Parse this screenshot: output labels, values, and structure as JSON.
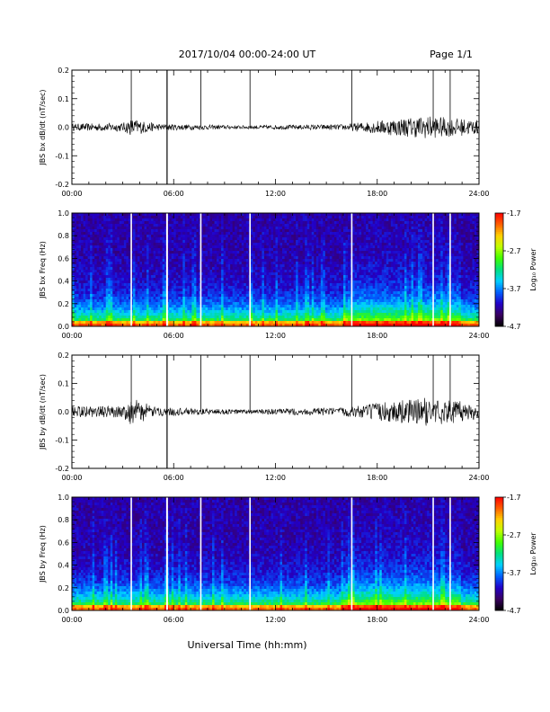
{
  "header": {
    "title": "2017/10/04  00:00-24:00 UT",
    "page": "Page 1/1"
  },
  "footer": {
    "xlabel": "Universal Time (hh:mm)"
  },
  "time_ticks": [
    "00:00",
    "06:00",
    "12:00",
    "18:00",
    "24:00"
  ],
  "spike_times_hours": [
    3.5,
    5.6,
    5.62,
    7.6,
    10.5,
    16.5,
    21.3,
    22.3
  ],
  "colorbar": {
    "label": "Log₁₀ Power",
    "ticks": [
      "-1.7",
      "-2.7",
      "-3.7",
      "-4.7"
    ],
    "range": [
      -4.7,
      -1.7
    ],
    "colors": [
      "#000000",
      "#3a0060",
      "#2200c8",
      "#0060ff",
      "#00d0ff",
      "#00e080",
      "#40ff00",
      "#c0ff00",
      "#ffd000",
      "#ff6000",
      "#ff0000"
    ]
  },
  "chart_data": [
    {
      "type": "line",
      "ylabel": "JBS bx dB/dt (nT/sec)",
      "x_range_hours": [
        0,
        24
      ],
      "ylim": [
        -0.2,
        0.2
      ],
      "yticks": [
        "0.2",
        "0.1",
        "0.0",
        "-0.1",
        "-0.2"
      ],
      "xticks": [
        "00:00",
        "06:00",
        "12:00",
        "18:00",
        "24:00"
      ],
      "noise_envelope": [
        {
          "x": 0,
          "amp": 0.012
        },
        {
          "x": 3,
          "amp": 0.015
        },
        {
          "x": 3.5,
          "amp": 0.03
        },
        {
          "x": 5,
          "amp": 0.012
        },
        {
          "x": 10,
          "amp": 0.006
        },
        {
          "x": 16,
          "amp": 0.01
        },
        {
          "x": 19,
          "amp": 0.03
        },
        {
          "x": 21,
          "amp": 0.04
        },
        {
          "x": 24,
          "amp": 0.025
        }
      ]
    },
    {
      "type": "heatmap",
      "ylabel": "JBS bx Freq (Hz)",
      "x_range_hours": [
        0,
        24
      ],
      "ylim": [
        0.0,
        1.0
      ],
      "yticks": [
        "1.0",
        "0.8",
        "0.6",
        "0.4",
        "0.2",
        "0.0"
      ],
      "xticks": [
        "00:00",
        "06:00",
        "12:00",
        "18:00",
        "24:00"
      ],
      "value_range": [
        -4.7,
        -1.7
      ]
    },
    {
      "type": "line",
      "ylabel": "JBS by dB/dt (nT/sec)",
      "x_range_hours": [
        0,
        24
      ],
      "ylim": [
        -0.2,
        0.2
      ],
      "yticks": [
        "0.2",
        "0.1",
        "0.0",
        "-0.1",
        "-0.2"
      ],
      "xticks": [
        "00:00",
        "06:00",
        "12:00",
        "18:00",
        "24:00"
      ],
      "noise_envelope": [
        {
          "x": 0,
          "amp": 0.02
        },
        {
          "x": 3,
          "amp": 0.02
        },
        {
          "x": 3.5,
          "amp": 0.05
        },
        {
          "x": 5,
          "amp": 0.015
        },
        {
          "x": 10,
          "amp": 0.008
        },
        {
          "x": 16,
          "amp": 0.015
        },
        {
          "x": 19,
          "amp": 0.04
        },
        {
          "x": 21,
          "amp": 0.05
        },
        {
          "x": 24,
          "amp": 0.03
        }
      ]
    },
    {
      "type": "heatmap",
      "ylabel": "JBS by Freq (Hz)",
      "x_range_hours": [
        0,
        24
      ],
      "ylim": [
        0.0,
        1.0
      ],
      "yticks": [
        "1.0",
        "0.8",
        "0.6",
        "0.4",
        "0.2",
        "0.0"
      ],
      "xticks": [
        "00:00",
        "06:00",
        "12:00",
        "18:00",
        "24:00"
      ],
      "value_range": [
        -4.7,
        -1.7
      ]
    }
  ]
}
